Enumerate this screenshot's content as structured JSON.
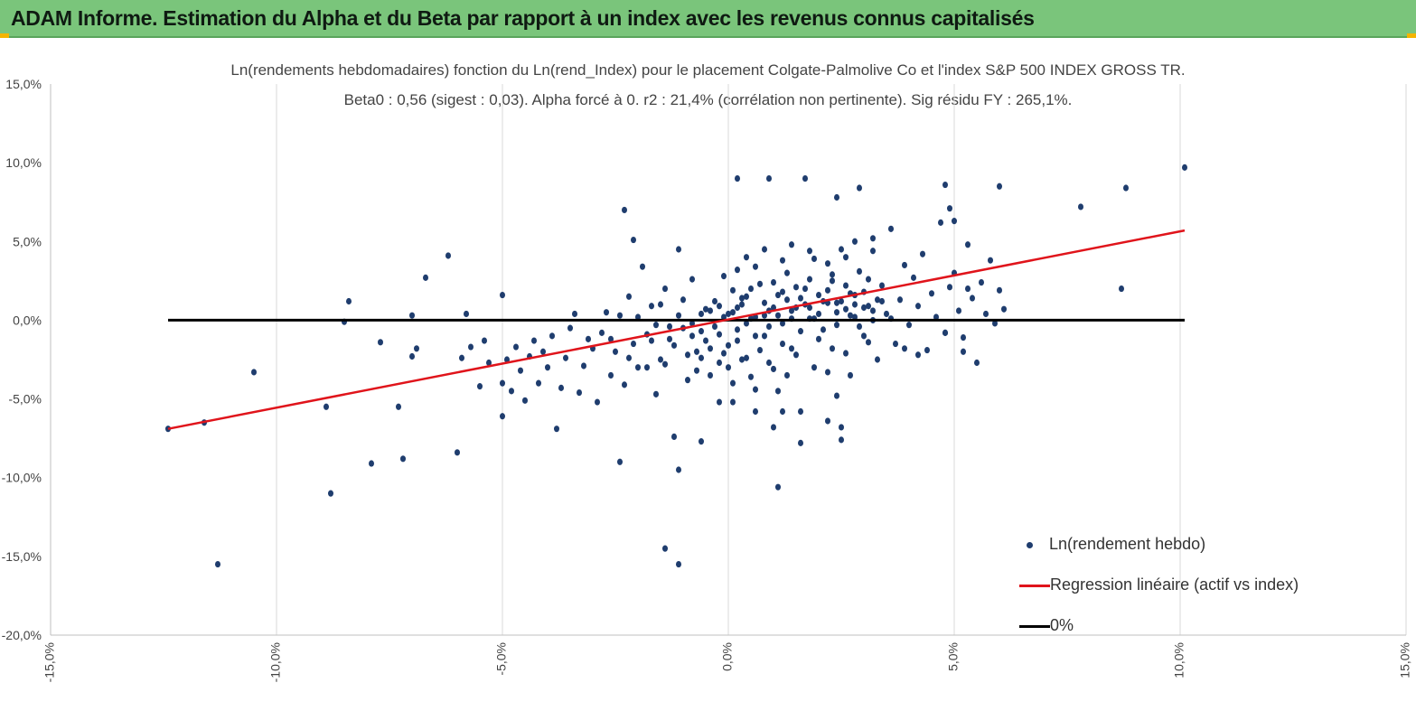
{
  "header": {
    "title": "ADAM Informe. Estimation du Alpha et du Beta par rapport à un index avec les revenus connus capitalisés"
  },
  "colors": {
    "header_bg": "#7ac57b",
    "points": "#1f3d6e",
    "regression": "#e0141b",
    "zero_line": "#000000"
  },
  "chart_data": {
    "type": "scatter",
    "title_line1": "Ln(rendements hebdomadaires) fonction du Ln(rend_Index) pour le  placement Colgate-Palmolive Co et l'index S&P 500 INDEX GROSS TR.",
    "title_line2": "Beta0 : 0,56 (sigest : 0,03). Alpha forcé à 0. r2 : 21,4% (corrélation non pertinente). Sig résidu FY : 265,1%.",
    "xlim": [
      -0.15,
      0.15
    ],
    "ylim": [
      -0.2,
      0.15
    ],
    "x_ticks": [
      -0.15,
      -0.1,
      -0.05,
      0.0,
      0.05,
      0.1,
      0.15
    ],
    "y_ticks": [
      -0.2,
      -0.15,
      -0.1,
      -0.05,
      0.0,
      0.05,
      0.1,
      0.15
    ],
    "x_tick_labels": [
      "-15,0%",
      "-10,0%",
      "-5,0%",
      "0,0%",
      "5,0%",
      "10,0%",
      "15,0%"
    ],
    "y_tick_labels": [
      "-20,0%",
      "-15,0%",
      "-10,0%",
      "-5,0%",
      "0,0%",
      "5,0%",
      "10,0%",
      "15,0%"
    ],
    "grid": "vertical",
    "legend_position": "bottom-right",
    "series": [
      {
        "name": "Ln(rendement hebdo)",
        "kind": "points",
        "points": [
          [
            -0.124,
            -0.069
          ],
          [
            -0.116,
            -0.065
          ],
          [
            -0.113,
            -0.155
          ],
          [
            -0.105,
            -0.033
          ],
          [
            -0.088,
            -0.11
          ],
          [
            -0.089,
            -0.055
          ],
          [
            -0.085,
            -0.001
          ],
          [
            -0.084,
            0.012
          ],
          [
            -0.079,
            -0.091
          ],
          [
            -0.077,
            -0.014
          ],
          [
            -0.073,
            -0.055
          ],
          [
            -0.072,
            -0.088
          ],
          [
            -0.07,
            -0.023
          ],
          [
            -0.069,
            -0.018
          ],
          [
            -0.07,
            0.003
          ],
          [
            -0.067,
            0.027
          ],
          [
            -0.062,
            0.041
          ],
          [
            -0.06,
            -0.084
          ],
          [
            -0.059,
            -0.024
          ],
          [
            -0.057,
            -0.017
          ],
          [
            -0.058,
            0.004
          ],
          [
            -0.055,
            -0.042
          ],
          [
            -0.054,
            -0.013
          ],
          [
            -0.053,
            -0.027
          ],
          [
            -0.05,
            -0.061
          ],
          [
            -0.05,
            -0.04
          ],
          [
            -0.05,
            0.016
          ],
          [
            -0.049,
            -0.025
          ],
          [
            -0.048,
            -0.045
          ],
          [
            -0.047,
            -0.017
          ],
          [
            -0.046,
            -0.032
          ],
          [
            -0.045,
            -0.051
          ],
          [
            -0.044,
            -0.023
          ],
          [
            -0.043,
            -0.013
          ],
          [
            -0.042,
            -0.04
          ],
          [
            -0.041,
            -0.02
          ],
          [
            -0.04,
            -0.03
          ],
          [
            -0.039,
            -0.01
          ],
          [
            -0.038,
            -0.069
          ],
          [
            -0.037,
            -0.043
          ],
          [
            -0.036,
            -0.024
          ],
          [
            -0.035,
            -0.005
          ],
          [
            -0.034,
            0.004
          ],
          [
            -0.033,
            -0.046
          ],
          [
            -0.032,
            -0.029
          ],
          [
            -0.031,
            -0.012
          ],
          [
            -0.03,
            -0.018
          ],
          [
            -0.029,
            -0.052
          ],
          [
            -0.028,
            -0.008
          ],
          [
            -0.027,
            0.005
          ],
          [
            -0.026,
            -0.035
          ],
          [
            -0.025,
            -0.02
          ],
          [
            -0.024,
            -0.09
          ],
          [
            -0.023,
            -0.041
          ],
          [
            -0.022,
            0.015
          ],
          [
            -0.021,
            -0.015
          ],
          [
            -0.02,
            -0.03
          ],
          [
            -0.019,
            0.034
          ],
          [
            -0.018,
            -0.009
          ],
          [
            -0.017,
            0.009
          ],
          [
            -0.016,
            -0.047
          ],
          [
            -0.015,
            -0.025
          ],
          [
            -0.014,
            0.02
          ],
          [
            -0.013,
            -0.012
          ],
          [
            -0.012,
            -0.074
          ],
          [
            -0.011,
            0.045
          ],
          [
            -0.01,
            -0.005
          ],
          [
            -0.009,
            -0.038
          ],
          [
            -0.008,
            0.026
          ],
          [
            -0.007,
            -0.02
          ],
          [
            -0.006,
            0.004
          ],
          [
            -0.005,
            -0.013
          ],
          [
            -0.004,
            -0.035
          ],
          [
            -0.003,
            0.012
          ],
          [
            -0.002,
            -0.027
          ],
          [
            -0.001,
            0.002
          ],
          [
            0.0,
            -0.016
          ],
          [
            0.001,
            0.019
          ],
          [
            0.002,
            -0.006
          ],
          [
            0.003,
            0.01
          ],
          [
            0.004,
            -0.024
          ],
          [
            0.005,
            0.001
          ],
          [
            0.006,
            -0.044
          ],
          [
            0.007,
            0.023
          ],
          [
            0.008,
            -0.01
          ],
          [
            0.009,
            0.006
          ],
          [
            0.01,
            -0.031
          ],
          [
            0.011,
            0.016
          ],
          [
            0.012,
            -0.002
          ],
          [
            0.013,
            0.03
          ],
          [
            0.014,
            -0.018
          ],
          [
            0.015,
            0.008
          ],
          [
            0.016,
            -0.058
          ],
          [
            0.017,
            0.02
          ],
          [
            0.018,
            0.001
          ],
          [
            0.019,
            0.039
          ],
          [
            0.02,
            -0.012
          ],
          [
            0.021,
            0.012
          ],
          [
            0.022,
            -0.033
          ],
          [
            0.023,
            0.025
          ],
          [
            0.024,
            0.005
          ],
          [
            0.025,
            0.045
          ],
          [
            0.026,
            -0.021
          ],
          [
            0.027,
            0.017
          ],
          [
            0.028,
            0.002
          ],
          [
            0.029,
            0.031
          ],
          [
            0.03,
            -0.01
          ],
          [
            0.031,
            0.009
          ],
          [
            0.032,
            0.052
          ],
          [
            0.033,
            -0.025
          ],
          [
            0.034,
            0.022
          ],
          [
            0.035,
            0.004
          ],
          [
            0.036,
            0.058
          ],
          [
            0.037,
            -0.015
          ],
          [
            0.038,
            0.013
          ],
          [
            0.039,
            0.035
          ],
          [
            0.04,
            -0.003
          ],
          [
            0.041,
            0.027
          ],
          [
            0.042,
            0.009
          ],
          [
            0.043,
            0.042
          ],
          [
            0.044,
            -0.019
          ],
          [
            0.045,
            0.017
          ],
          [
            0.046,
            0.002
          ],
          [
            0.047,
            0.062
          ],
          [
            0.048,
            -0.008
          ],
          [
            0.049,
            0.021
          ],
          [
            0.05,
            0.03
          ],
          [
            0.051,
            0.006
          ],
          [
            0.052,
            -0.011
          ],
          [
            0.053,
            0.048
          ],
          [
            0.054,
            0.014
          ],
          [
            0.055,
            -0.027
          ],
          [
            0.056,
            0.024
          ],
          [
            0.057,
            0.004
          ],
          [
            0.058,
            0.038
          ],
          [
            0.059,
            -0.002
          ],
          [
            0.06,
            0.019
          ],
          [
            0.061,
            0.007
          ],
          [
            -0.022,
            -0.024
          ],
          [
            -0.018,
            -0.03
          ],
          [
            -0.016,
            -0.003
          ],
          [
            -0.014,
            -0.028
          ],
          [
            -0.012,
            -0.016
          ],
          [
            -0.011,
            0.003
          ],
          [
            -0.009,
            -0.022
          ],
          [
            -0.008,
            -0.01
          ],
          [
            -0.007,
            -0.032
          ],
          [
            -0.006,
            -0.007
          ],
          [
            -0.005,
            0.007
          ],
          [
            -0.004,
            -0.018
          ],
          [
            -0.003,
            -0.004
          ],
          [
            -0.002,
            0.009
          ],
          [
            -0.001,
            -0.021
          ],
          [
            0.001,
            0.005
          ],
          [
            0.002,
            -0.013
          ],
          [
            0.003,
            0.014
          ],
          [
            0.004,
            -0.002
          ],
          [
            0.005,
            0.02
          ],
          [
            0.006,
            0.002
          ],
          [
            0.007,
            -0.019
          ],
          [
            0.008,
            0.011
          ],
          [
            0.009,
            -0.004
          ],
          [
            0.01,
            0.024
          ],
          [
            0.011,
            0.003
          ],
          [
            0.012,
            -0.015
          ],
          [
            0.013,
            0.013
          ],
          [
            0.014,
            0.001
          ],
          [
            0.015,
            0.021
          ],
          [
            0.016,
            -0.007
          ],
          [
            0.017,
            0.01
          ],
          [
            0.018,
            0.026
          ],
          [
            0.019,
            0.001
          ],
          [
            0.02,
            0.016
          ],
          [
            0.021,
            -0.006
          ],
          [
            0.022,
            0.011
          ],
          [
            0.023,
            0.029
          ],
          [
            0.024,
            -0.003
          ],
          [
            0.025,
            0.012
          ],
          [
            0.026,
            0.022
          ],
          [
            0.027,
            0.003
          ],
          [
            0.028,
            0.016
          ],
          [
            0.029,
            -0.004
          ],
          [
            0.03,
            0.008
          ],
          [
            0.031,
            0.026
          ],
          [
            0.032,
            0.0
          ],
          [
            0.033,
            0.013
          ],
          [
            -0.02,
            0.002
          ],
          [
            -0.017,
            -0.013
          ],
          [
            -0.015,
            0.01
          ],
          [
            -0.013,
            -0.004
          ],
          [
            -0.01,
            0.013
          ],
          [
            -0.008,
            -0.002
          ],
          [
            -0.006,
            -0.024
          ],
          [
            -0.004,
            0.006
          ],
          [
            -0.002,
            -0.009
          ],
          [
            0.0,
            0.004
          ],
          [
            0.002,
            0.008
          ],
          [
            0.004,
            0.015
          ],
          [
            0.006,
            -0.01
          ],
          [
            0.008,
            0.003
          ],
          [
            0.01,
            0.008
          ],
          [
            0.012,
            0.018
          ],
          [
            0.014,
            0.006
          ],
          [
            0.016,
            0.014
          ],
          [
            0.018,
            0.008
          ],
          [
            0.02,
            0.004
          ],
          [
            0.022,
            0.019
          ],
          [
            0.024,
            0.011
          ],
          [
            0.026,
            0.007
          ],
          [
            0.028,
            0.01
          ],
          [
            0.03,
            0.018
          ],
          [
            0.032,
            0.006
          ],
          [
            0.034,
            0.012
          ],
          [
            0.036,
            0.001
          ],
          [
            -0.026,
            -0.012
          ],
          [
            -0.024,
            0.003
          ],
          [
            0.0,
            -0.03
          ],
          [
            0.001,
            -0.04
          ],
          [
            0.003,
            -0.025
          ],
          [
            0.005,
            -0.036
          ],
          [
            0.009,
            -0.027
          ],
          [
            0.011,
            -0.045
          ],
          [
            0.013,
            -0.035
          ],
          [
            0.015,
            -0.022
          ],
          [
            0.019,
            -0.03
          ],
          [
            0.023,
            -0.018
          ],
          [
            0.027,
            -0.035
          ],
          [
            0.031,
            -0.014
          ],
          [
            -0.001,
            0.028
          ],
          [
            0.002,
            0.032
          ],
          [
            0.004,
            0.04
          ],
          [
            0.006,
            0.034
          ],
          [
            0.008,
            0.045
          ],
          [
            0.012,
            0.038
          ],
          [
            0.014,
            0.048
          ],
          [
            0.018,
            0.044
          ],
          [
            0.022,
            0.036
          ],
          [
            0.026,
            0.04
          ],
          [
            0.028,
            0.05
          ],
          [
            0.032,
            0.044
          ],
          [
            0.002,
            0.09
          ],
          [
            0.009,
            0.09
          ],
          [
            0.017,
            0.09
          ],
          [
            0.024,
            0.078
          ],
          [
            0.029,
            0.084
          ],
          [
            0.048,
            0.086
          ],
          [
            0.049,
            0.071
          ],
          [
            0.05,
            0.063
          ],
          [
            0.06,
            0.085
          ],
          [
            0.078,
            0.072
          ],
          [
            0.088,
            0.084
          ],
          [
            0.101,
            0.097
          ],
          [
            -0.023,
            0.07
          ],
          [
            -0.021,
            0.051
          ],
          [
            0.053,
            0.02
          ],
          [
            0.087,
            0.02
          ],
          [
            0.052,
            -0.02
          ],
          [
            0.048,
            -0.008
          ],
          [
            0.042,
            -0.022
          ],
          [
            0.039,
            -0.018
          ],
          [
            0.022,
            -0.064
          ],
          [
            0.016,
            -0.078
          ],
          [
            0.012,
            -0.058
          ],
          [
            0.011,
            -0.106
          ],
          [
            0.01,
            -0.068
          ],
          [
            0.006,
            -0.058
          ],
          [
            -0.006,
            -0.077
          ],
          [
            -0.011,
            -0.095
          ],
          [
            -0.014,
            -0.145
          ],
          [
            -0.011,
            -0.155
          ],
          [
            -0.002,
            -0.052
          ],
          [
            0.001,
            -0.052
          ],
          [
            0.024,
            -0.048
          ],
          [
            0.025,
            -0.076
          ],
          [
            0.025,
            -0.068
          ]
        ]
      },
      {
        "name": "Regression linéaire (actif vs index)",
        "kind": "line",
        "points": [
          [
            -0.124,
            -0.069
          ],
          [
            0.101,
            0.057
          ]
        ]
      },
      {
        "name": "0%",
        "kind": "line",
        "points": [
          [
            -0.124,
            0.0
          ],
          [
            0.101,
            0.0
          ]
        ]
      }
    ]
  }
}
